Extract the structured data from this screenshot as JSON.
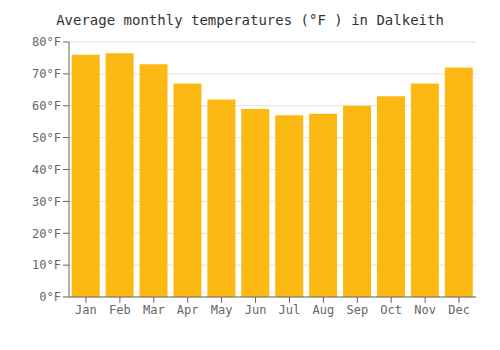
{
  "chart_data": {
    "type": "bar",
    "title": "Average monthly temperatures (°F ) in Dalkeith",
    "categories": [
      "Jan",
      "Feb",
      "Mar",
      "Apr",
      "May",
      "Jun",
      "Jul",
      "Aug",
      "Sep",
      "Oct",
      "Nov",
      "Dec"
    ],
    "values": [
      76,
      76.5,
      73,
      67,
      62,
      59,
      57,
      57.5,
      60,
      63,
      67,
      72
    ],
    "color": "#FDB913",
    "ylim": [
      0,
      80
    ],
    "yticks": [
      {
        "value": 0,
        "label": "0°F"
      },
      {
        "value": 10,
        "label": "10°F"
      },
      {
        "value": 20,
        "label": "20°F"
      },
      {
        "value": 30,
        "label": "30°F"
      },
      {
        "value": 40,
        "label": "40°F"
      },
      {
        "value": 50,
        "label": "50°F"
      },
      {
        "value": 60,
        "label": "60°F"
      },
      {
        "value": 70,
        "label": "70°F"
      },
      {
        "value": 80,
        "label": "80°F"
      }
    ],
    "grid": true
  }
}
